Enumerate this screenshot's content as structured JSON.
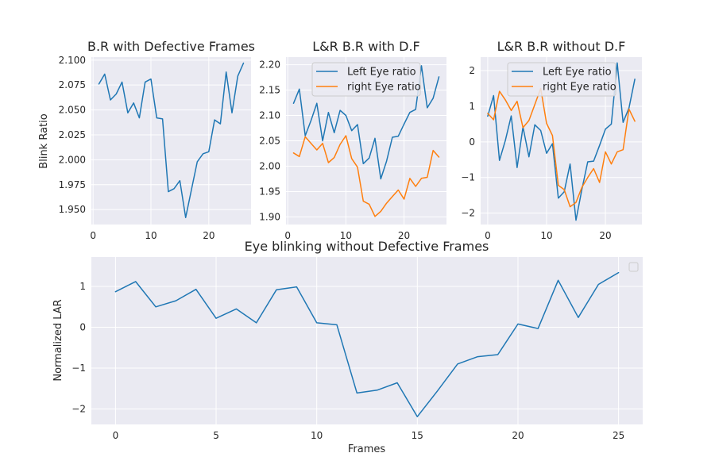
{
  "figure": {
    "background": "#ffffff",
    "panel_bg": "#eaeaf2",
    "grid_color": "#ffffff",
    "text_color": "#262626"
  },
  "colors": {
    "blue": "#1f77b4",
    "orange": "#ff7f0e"
  },
  "chart_data": [
    {
      "id": "br",
      "type": "line",
      "title": "B.R with Defective Frames",
      "xlabel": "",
      "ylabel": "Blink Ratio",
      "xlim": [
        -0.3,
        27.3
      ],
      "ylim": [
        1.935,
        2.103
      ],
      "xticks": [
        0,
        10,
        20
      ],
      "yticks": [
        1.95,
        1.975,
        2.0,
        2.025,
        2.05,
        2.075,
        2.1
      ],
      "ytick_labels": [
        "1.950",
        "1.975",
        "2.000",
        "2.025",
        "2.050",
        "2.075",
        "2.100"
      ],
      "grid": true,
      "legend": null,
      "series": [
        {
          "color": "#1f77b4",
          "x": [
            1,
            2,
            3,
            4,
            5,
            6,
            7,
            8,
            9,
            10,
            11,
            12,
            13,
            14,
            15,
            16,
            17,
            18,
            19,
            20,
            21,
            22,
            23,
            24,
            25,
            26
          ],
          "y": [
            2.076,
            2.086,
            2.06,
            2.066,
            2.078,
            2.047,
            2.057,
            2.042,
            2.078,
            2.081,
            2.042,
            2.041,
            1.968,
            1.971,
            1.979,
            1.942,
            1.97,
            1.998,
            2.006,
            2.008,
            2.04,
            2.036,
            2.088,
            2.047,
            2.084,
            2.097
          ]
        }
      ]
    },
    {
      "id": "lr_df",
      "type": "line",
      "title": "L&R B.R with D.F",
      "xlabel": "",
      "ylabel": "",
      "xlim": [
        -0.3,
        27.3
      ],
      "ylim": [
        1.885,
        2.215
      ],
      "xticks": [
        0,
        10,
        20
      ],
      "yticks": [
        1.9,
        1.95,
        2.0,
        2.05,
        2.1,
        2.15,
        2.2
      ],
      "ytick_labels": [
        "1.90",
        "1.95",
        "2.00",
        "2.05",
        "2.10",
        "2.15",
        "2.20"
      ],
      "grid": true,
      "legend": "upper-right",
      "series": [
        {
          "name": "Left Eye ratio",
          "color": "#1f77b4",
          "x": [
            1,
            2,
            3,
            4,
            5,
            6,
            7,
            8,
            9,
            10,
            11,
            12,
            13,
            14,
            15,
            16,
            17,
            18,
            19,
            20,
            21,
            22,
            23,
            24,
            25,
            26
          ],
          "y": [
            2.124,
            2.152,
            2.06,
            2.09,
            2.124,
            2.05,
            2.106,
            2.066,
            2.11,
            2.1,
            2.07,
            2.082,
            2.005,
            2.016,
            2.055,
            1.975,
            2.01,
            2.057,
            2.059,
            2.083,
            2.106,
            2.112,
            2.198,
            2.115,
            2.134,
            2.176
          ]
        },
        {
          "name": "right Eye ratio",
          "color": "#ff7f0e",
          "x": [
            1,
            2,
            3,
            4,
            5,
            6,
            7,
            8,
            9,
            10,
            11,
            12,
            13,
            14,
            15,
            16,
            17,
            18,
            19,
            20,
            21,
            22,
            23,
            24,
            25,
            26
          ],
          "y": [
            2.026,
            2.019,
            2.058,
            2.045,
            2.032,
            2.045,
            2.007,
            2.017,
            2.043,
            2.06,
            2.015,
            1.998,
            1.931,
            1.925,
            1.901,
            1.911,
            1.927,
            1.94,
            1.953,
            1.935,
            1.976,
            1.96,
            1.976,
            1.978,
            2.031,
            2.018
          ]
        }
      ]
    },
    {
      "id": "lr_nodf",
      "type": "line",
      "title": "L&R B.R without D.F",
      "xlabel": "",
      "ylabel": "",
      "xlim": [
        -1.2,
        26.2
      ],
      "ylim": [
        -2.32,
        2.38
      ],
      "xticks": [
        0,
        10,
        20
      ],
      "yticks": [
        -2,
        -1,
        0,
        1,
        2
      ],
      "ytick_labels": [
        "−2",
        "−1",
        "0",
        "1",
        "2"
      ],
      "grid": true,
      "legend": "upper-right",
      "series": [
        {
          "name": "Left Eye ratio",
          "color": "#1f77b4",
          "x": [
            0,
            1,
            2,
            3,
            4,
            5,
            6,
            7,
            8,
            9,
            10,
            11,
            12,
            13,
            14,
            15,
            16,
            17,
            18,
            19,
            20,
            21,
            22,
            23,
            24,
            25
          ],
          "y": [
            0.72,
            1.3,
            -0.52,
            0.04,
            0.73,
            -0.72,
            0.42,
            -0.42,
            0.48,
            0.32,
            -0.32,
            -0.05,
            -1.58,
            -1.4,
            -0.62,
            -2.2,
            -1.34,
            -0.56,
            -0.54,
            -0.1,
            0.36,
            0.5,
            2.22,
            0.55,
            0.95,
            1.76
          ]
        },
        {
          "name": "right Eye ratio",
          "color": "#ff7f0e",
          "x": [
            0,
            1,
            2,
            3,
            4,
            5,
            6,
            7,
            8,
            9,
            10,
            11,
            12,
            13,
            14,
            15,
            16,
            17,
            18,
            19,
            20,
            21,
            22,
            23,
            24,
            25
          ],
          "y": [
            0.8,
            0.62,
            1.42,
            1.18,
            0.88,
            1.14,
            0.4,
            0.6,
            1.05,
            1.5,
            0.52,
            0.18,
            -1.22,
            -1.34,
            -1.82,
            -1.7,
            -1.28,
            -1.0,
            -0.75,
            -1.14,
            -0.28,
            -0.62,
            -0.28,
            -0.22,
            0.92,
            0.58
          ]
        }
      ]
    },
    {
      "id": "bottom",
      "type": "line",
      "title": "Eye blinking without Defective Frames",
      "xlabel": "Frames",
      "ylabel": "Normalized LAR",
      "xlim": [
        -1.2,
        26.2
      ],
      "ylim": [
        -2.38,
        1.72
      ],
      "xticks": [
        0,
        5,
        10,
        15,
        20,
        25
      ],
      "yticks": [
        -2,
        -1,
        0,
        1
      ],
      "ytick_labels": [
        "−2",
        "−1",
        "0",
        "1"
      ],
      "grid": true,
      "legend": "upper-right-empty",
      "series": [
        {
          "color": "#1f77b4",
          "x": [
            0,
            1,
            2,
            3,
            4,
            5,
            6,
            7,
            8,
            9,
            10,
            11,
            12,
            13,
            14,
            15,
            16,
            17,
            18,
            19,
            20,
            21,
            22,
            23,
            24,
            25
          ],
          "y": [
            0.87,
            1.12,
            0.5,
            0.65,
            0.93,
            0.22,
            0.45,
            0.11,
            0.92,
            0.99,
            0.11,
            0.06,
            -1.61,
            -1.54,
            -1.36,
            -2.19,
            -1.56,
            -0.9,
            -0.72,
            -0.67,
            0.08,
            -0.03,
            1.15,
            0.24,
            1.05,
            1.34
          ]
        }
      ]
    }
  ]
}
